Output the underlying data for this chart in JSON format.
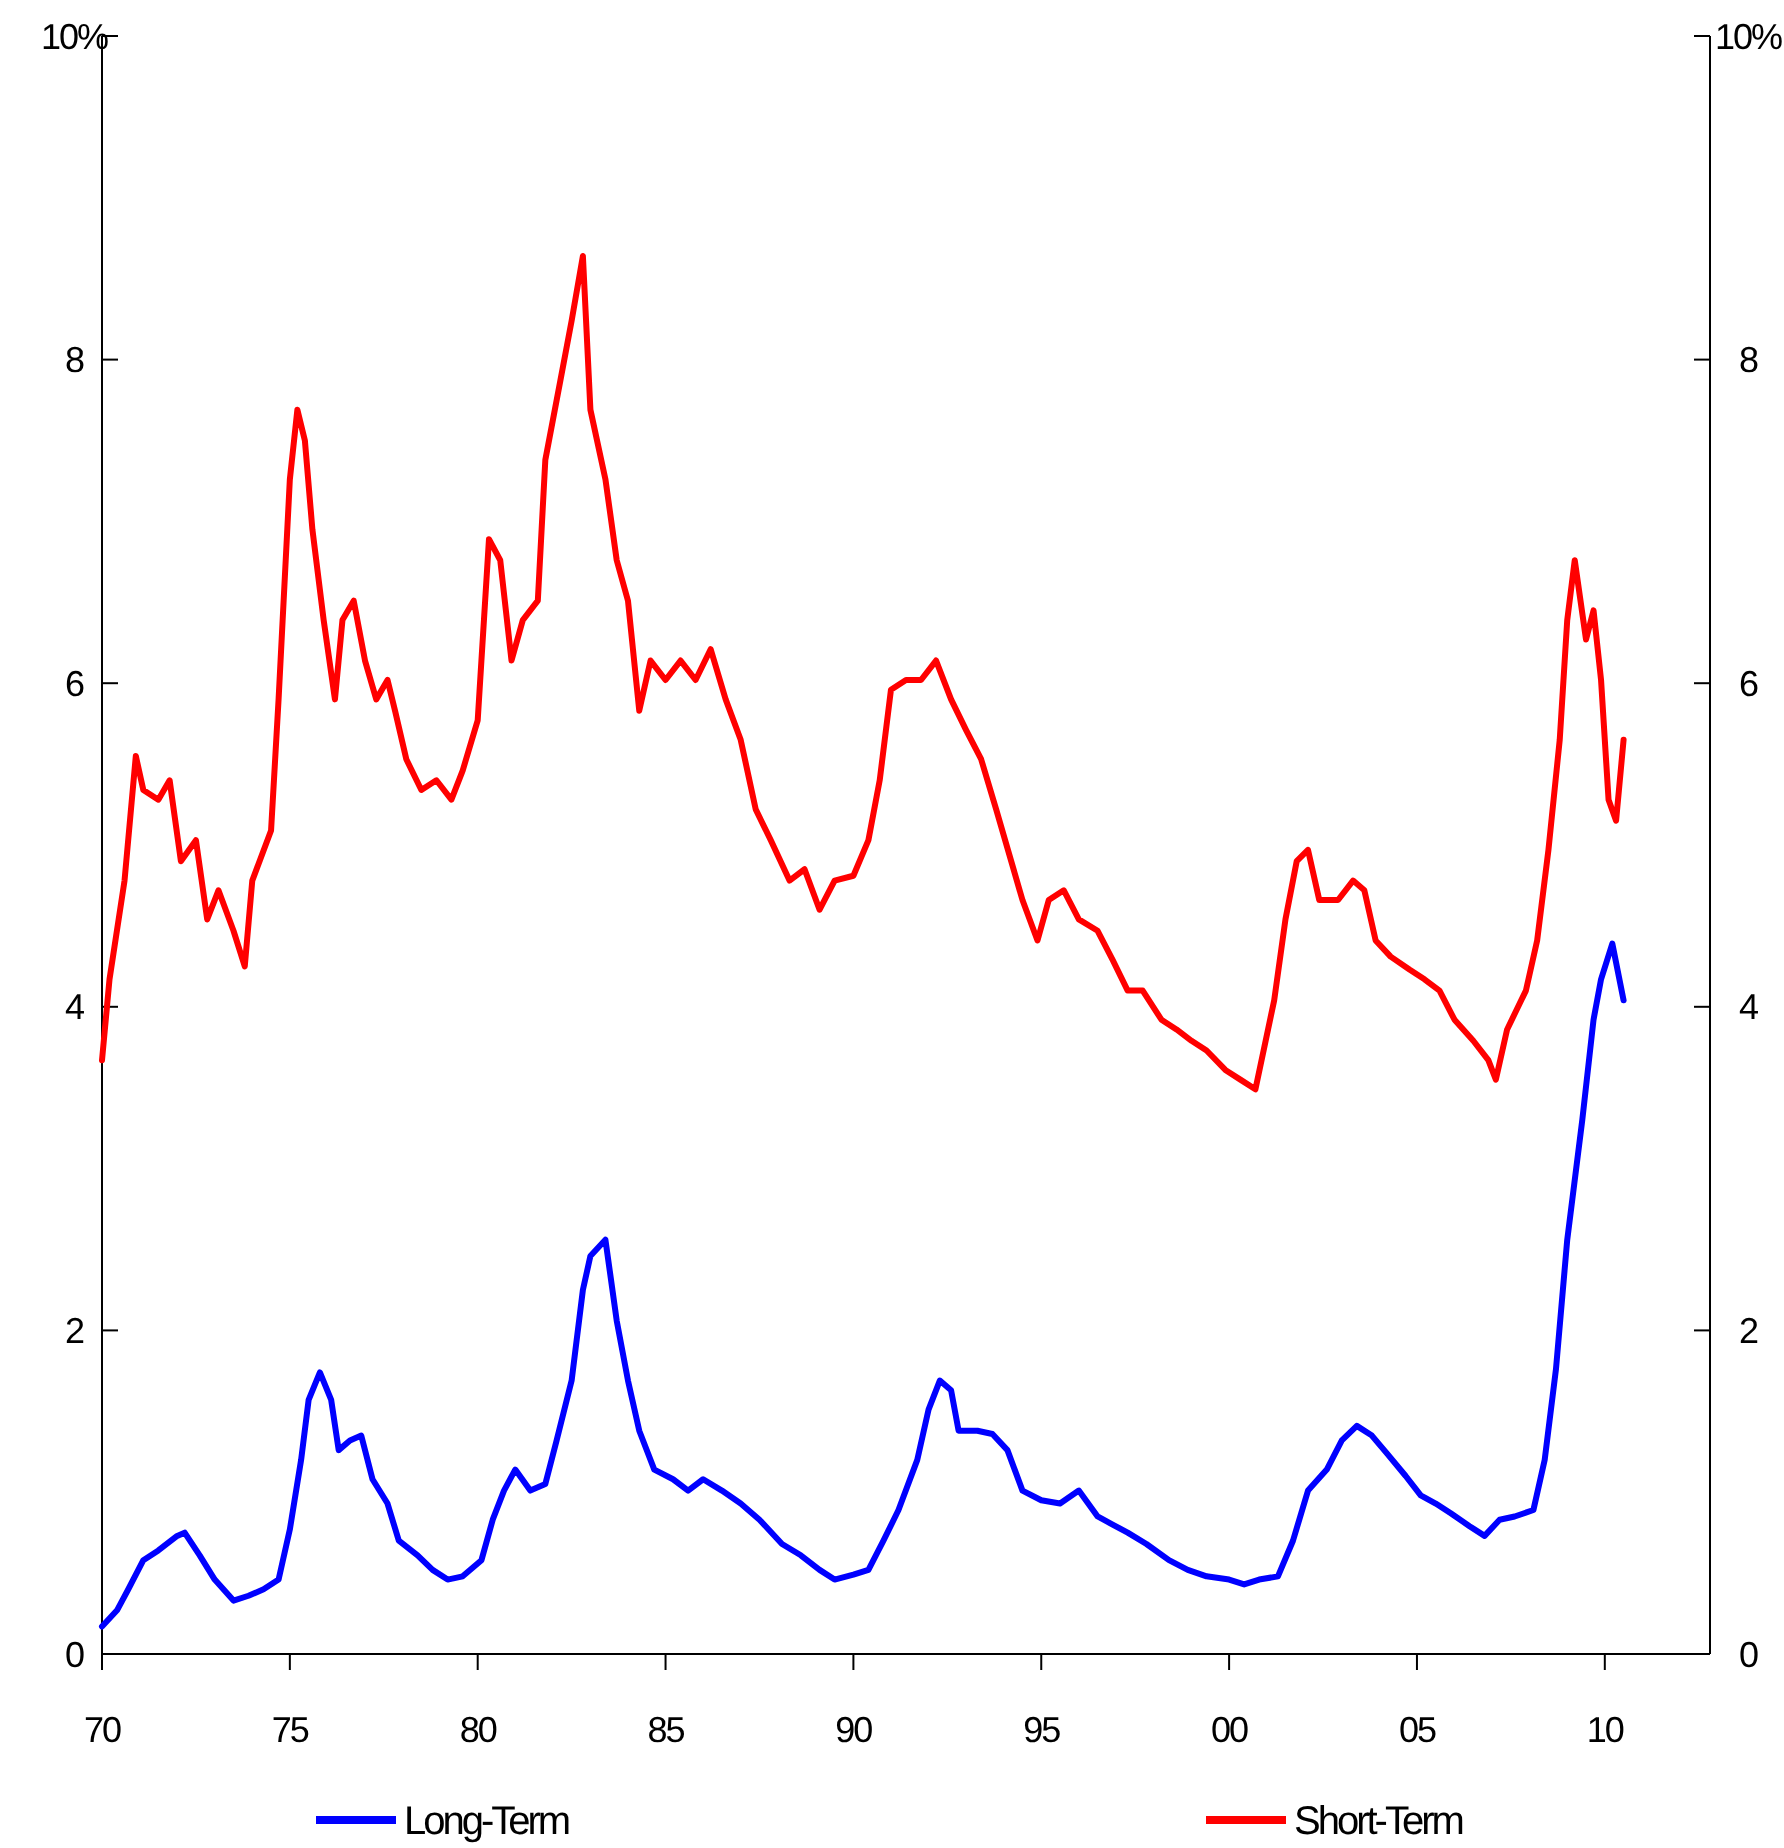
{
  "chart_data": {
    "type": "line",
    "xlim": [
      1970,
      2012.8
    ],
    "xticks": [
      {
        "value": 1970,
        "label": "70"
      },
      {
        "value": 1975,
        "label": "75"
      },
      {
        "value": 1980,
        "label": "80"
      },
      {
        "value": 1985,
        "label": "85"
      },
      {
        "value": 1990,
        "label": "90"
      },
      {
        "value": 1995,
        "label": "95"
      },
      {
        "value": 2000,
        "label": "00"
      },
      {
        "value": 2005,
        "label": "05"
      },
      {
        "value": 2010,
        "label": "10"
      }
    ],
    "ylim": [
      0,
      10
    ],
    "yticks": [
      0,
      2,
      4,
      6,
      8,
      {
        "value": 10,
        "label": "10%"
      }
    ],
    "y2lim": [
      0,
      10
    ],
    "y2ticks": [
      0,
      2,
      4,
      6,
      8,
      {
        "value": 10,
        "label": "10%"
      }
    ],
    "legend": "bottom",
    "grid": false,
    "marker": "none",
    "line_style": "solid",
    "series": [
      {
        "name": "Long-Term",
        "color": "#0000ff",
        "x": [
          1970.0,
          1970.4,
          1970.7,
          1971.1,
          1971.5,
          1972.0,
          1972.2,
          1972.6,
          1973.0,
          1973.5,
          1973.9,
          1974.3,
          1974.7,
          1975.0,
          1975.3,
          1975.5,
          1975.8,
          1976.1,
          1976.3,
          1976.6,
          1976.9,
          1977.2,
          1977.6,
          1977.9,
          1978.4,
          1978.8,
          1979.2,
          1979.6,
          1980.1,
          1980.4,
          1980.7,
          1981.0,
          1981.4,
          1981.8,
          1982.1,
          1982.5,
          1982.8,
          1983.0,
          1983.4,
          1983.7,
          1984.0,
          1984.3,
          1984.7,
          1985.2,
          1985.6,
          1986.0,
          1986.5,
          1987.0,
          1987.5,
          1988.1,
          1988.6,
          1989.1,
          1989.5,
          1990.0,
          1990.4,
          1990.8,
          1991.2,
          1991.7,
          1992.0,
          1992.3,
          1992.6,
          1992.8,
          1993.3,
          1993.7,
          1994.1,
          1994.5,
          1995.0,
          1995.5,
          1996.0,
          1996.5,
          1996.9,
          1997.3,
          1997.8,
          1998.4,
          1998.9,
          1999.4,
          2000.0,
          2000.4,
          2000.8,
          2001.3,
          2001.7,
          2002.1,
          2002.6,
          2003.0,
          2003.4,
          2003.8,
          2004.2,
          2004.7,
          2005.1,
          2005.5,
          2005.9,
          2006.4,
          2006.8,
          2007.2,
          2007.6,
          2008.1,
          2008.4,
          2008.7,
          2009.0,
          2009.4,
          2009.7,
          2009.9,
          2010.2,
          2010.5
        ],
        "values": [
          0.17,
          0.27,
          0.4,
          0.58,
          0.64,
          0.73,
          0.75,
          0.61,
          0.46,
          0.33,
          0.36,
          0.4,
          0.46,
          0.77,
          1.2,
          1.57,
          1.74,
          1.57,
          1.26,
          1.32,
          1.35,
          1.08,
          0.93,
          0.7,
          0.61,
          0.52,
          0.46,
          0.48,
          0.58,
          0.83,
          1.01,
          1.14,
          1.01,
          1.05,
          1.32,
          1.69,
          2.25,
          2.46,
          2.56,
          2.06,
          1.69,
          1.38,
          1.14,
          1.08,
          1.01,
          1.08,
          1.01,
          0.93,
          0.83,
          0.68,
          0.61,
          0.52,
          0.46,
          0.49,
          0.52,
          0.7,
          0.89,
          1.2,
          1.51,
          1.69,
          1.63,
          1.38,
          1.38,
          1.36,
          1.26,
          1.01,
          0.95,
          0.93,
          1.01,
          0.85,
          0.8,
          0.75,
          0.68,
          0.58,
          0.52,
          0.48,
          0.46,
          0.43,
          0.46,
          0.48,
          0.7,
          1.01,
          1.14,
          1.32,
          1.41,
          1.35,
          1.24,
          1.1,
          0.98,
          0.93,
          0.87,
          0.79,
          0.73,
          0.83,
          0.85,
          0.89,
          1.2,
          1.76,
          2.56,
          3.3,
          3.92,
          4.17,
          4.39,
          4.04
        ]
      },
      {
        "name": "Short-Term",
        "color": "#ff0000",
        "x": [
          1970.0,
          1970.2,
          1970.6,
          1970.9,
          1971.1,
          1971.5,
          1971.8,
          1972.1,
          1972.5,
          1972.8,
          1973.1,
          1973.5,
          1973.8,
          1974.0,
          1974.5,
          1974.7,
          1975.0,
          1975.2,
          1975.4,
          1975.6,
          1975.9,
          1976.2,
          1976.4,
          1976.7,
          1977.0,
          1977.3,
          1977.6,
          1977.8,
          1978.1,
          1978.5,
          1978.9,
          1979.3,
          1979.6,
          1980.0,
          1980.3,
          1980.6,
          1980.9,
          1981.2,
          1981.6,
          1981.8,
          1982.2,
          1982.5,
          1982.8,
          1983.0,
          1983.4,
          1983.7,
          1984.0,
          1984.3,
          1984.6,
          1985.0,
          1985.4,
          1985.8,
          1986.2,
          1986.6,
          1987.0,
          1987.4,
          1987.8,
          1988.3,
          1988.7,
          1989.1,
          1989.5,
          1990.0,
          1990.4,
          1990.7,
          1991.0,
          1991.4,
          1991.8,
          1992.2,
          1992.6,
          1993.0,
          1993.4,
          1993.8,
          1994.2,
          1994.5,
          1994.9,
          1995.2,
          1995.6,
          1996.0,
          1996.5,
          1996.9,
          1997.3,
          1997.7,
          1998.2,
          1998.6,
          1999.0,
          1999.4,
          1999.9,
          2000.3,
          2000.7,
          2001.2,
          2001.5,
          2001.8,
          2002.1,
          2002.4,
          2002.9,
          2003.3,
          2003.6,
          2003.9,
          2004.3,
          2004.8,
          2005.2,
          2005.6,
          2006.0,
          2006.5,
          2006.9,
          2007.1,
          2007.4,
          2007.9,
          2008.2,
          2008.5,
          2008.8,
          2009.0,
          2009.2,
          2009.5,
          2009.7,
          2009.9,
          2010.1,
          2010.3,
          2010.5
        ],
        "values": [
          3.67,
          4.17,
          4.78,
          5.55,
          5.34,
          5.28,
          5.4,
          4.9,
          5.03,
          4.54,
          4.72,
          4.47,
          4.25,
          4.78,
          5.09,
          5.9,
          7.26,
          7.69,
          7.5,
          6.95,
          6.39,
          5.9,
          6.39,
          6.51,
          6.14,
          5.9,
          6.02,
          5.83,
          5.53,
          5.34,
          5.4,
          5.28,
          5.46,
          5.77,
          6.89,
          6.76,
          6.14,
          6.39,
          6.51,
          7.38,
          7.87,
          8.24,
          8.64,
          7.69,
          7.26,
          6.76,
          6.51,
          5.83,
          6.14,
          6.02,
          6.14,
          6.02,
          6.21,
          5.9,
          5.65,
          5.22,
          5.03,
          4.78,
          4.85,
          4.6,
          4.78,
          4.81,
          5.03,
          5.4,
          5.96,
          6.02,
          6.02,
          6.14,
          5.9,
          5.71,
          5.53,
          5.22,
          4.9,
          4.66,
          4.41,
          4.66,
          4.72,
          4.54,
          4.47,
          4.29,
          4.1,
          4.1,
          3.92,
          3.86,
          3.79,
          3.73,
          3.61,
          3.55,
          3.49,
          4.04,
          4.54,
          4.9,
          4.97,
          4.66,
          4.66,
          4.78,
          4.72,
          4.41,
          4.31,
          4.23,
          4.17,
          4.1,
          3.92,
          3.79,
          3.67,
          3.55,
          3.86,
          4.1,
          4.41,
          4.97,
          5.65,
          6.39,
          6.76,
          6.27,
          6.45,
          6.02,
          5.28,
          5.15,
          5.65
        ]
      }
    ]
  }
}
